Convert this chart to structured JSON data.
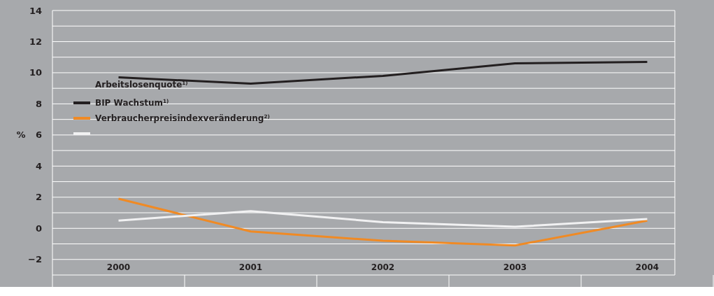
{
  "chart_data": {
    "type": "line",
    "ylabel": "%",
    "categories": [
      "2000",
      "2001",
      "2002",
      "2003",
      "2004"
    ],
    "series": [
      {
        "name": "BIP Wachstum$^{1)}$",
        "color": "#231f20",
        "values": [
          9.7,
          9.3,
          9.8,
          10.6,
          10.7
        ]
      },
      {
        "name": "Verbraucherpreisindexveränderung$^{2)}$",
        "color": "#f08a24",
        "values": [
          1.9,
          -0.2,
          -0.8,
          -1.1,
          0.5
        ]
      },
      {
        "color": "#f1f1f2",
        "values": [
          0.5,
          1.1,
          0.4,
          0.1,
          0.6
        ]
      }
    ],
    "annotations": [
      "Arbeitslosenquote$^{1)}$"
    ],
    "ylim": [
      -3,
      14
    ],
    "yticks": [
      {
        "value": -3,
        "label": null
      },
      -2,
      {
        "value": -1,
        "label": null
      },
      0,
      {
        "value": 1,
        "label": null
      },
      2,
      {
        "value": 3,
        "label": null
      },
      4,
      {
        "value": 5,
        "label": null
      },
      6,
      {
        "value": 7,
        "label": null
      },
      8,
      {
        "value": 9,
        "label": null
      },
      10,
      {
        "value": 11,
        "label": null
      },
      12,
      {
        "value": 13,
        "label": null
      },
      14
    ],
    "grid": true,
    "legend": "left",
    "line_style": "solid"
  }
}
